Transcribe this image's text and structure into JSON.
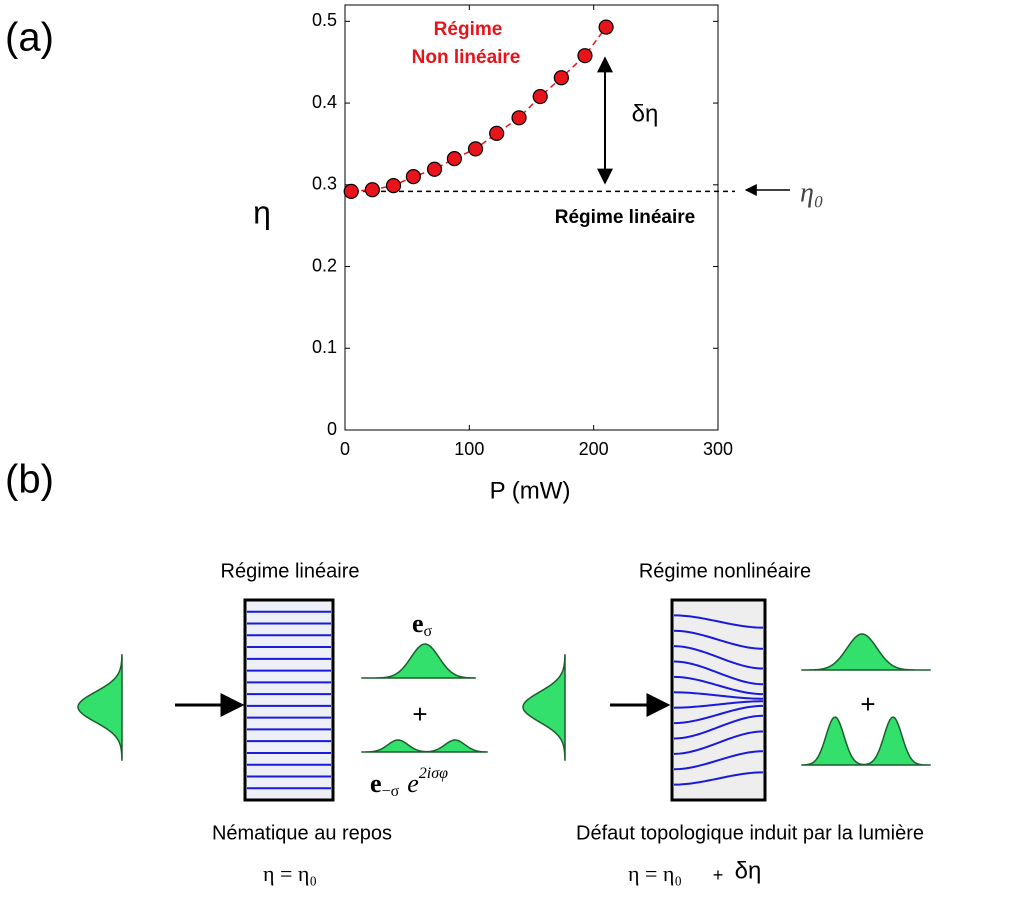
{
  "panel_labels": [
    "(a)",
    "(b)"
  ],
  "chart_data": {
    "type": "scatter",
    "x_label": "P (mW)",
    "y_label": "η",
    "x": [
      5,
      22,
      39,
      55,
      72,
      88,
      105,
      122,
      140,
      157,
      174,
      193,
      210
    ],
    "series": [
      {
        "color": "#e8141b",
        "values": [
          0.292,
          0.294,
          0.299,
          0.31,
          0.319,
          0.332,
          0.344,
          0.363,
          0.382,
          0.408,
          0.431,
          0.458,
          0.493
        ]
      }
    ],
    "xlim": [
      0,
      300
    ],
    "xticks": [
      0,
      100,
      200,
      300
    ],
    "ylim": [
      0,
      0.52
    ],
    "yticks": [
      0,
      0.1,
      0.2,
      0.3,
      0.4,
      0.5
    ],
    "eta0_level": 0.292,
    "annotations": {
      "nonlinear_1": "Régime",
      "nonlinear_2": "Non linéaire",
      "delta_eta": "δη",
      "linear": "Régime linéaire",
      "eta0": "η₀"
    }
  },
  "diagram": {
    "left": {
      "title": "Régime linéaire",
      "caption": "Nématique au repos",
      "equation": "η = η₀",
      "input_label": {
        "base": "e",
        "sub": "σ"
      },
      "out_top": {
        "base": "e",
        "sub": "σ"
      },
      "plus": "+",
      "out_bottom": {
        "base": "e",
        "sub": "−σ",
        "exp_base": "e",
        "exp": "2iσφ"
      }
    },
    "right": {
      "title": "Régime nonlinéaire",
      "caption": "Défaut topologique induit par la lumière",
      "equation": "η = η₀",
      "plus_term": "+",
      "delta": "δη",
      "plus": "+"
    }
  }
}
